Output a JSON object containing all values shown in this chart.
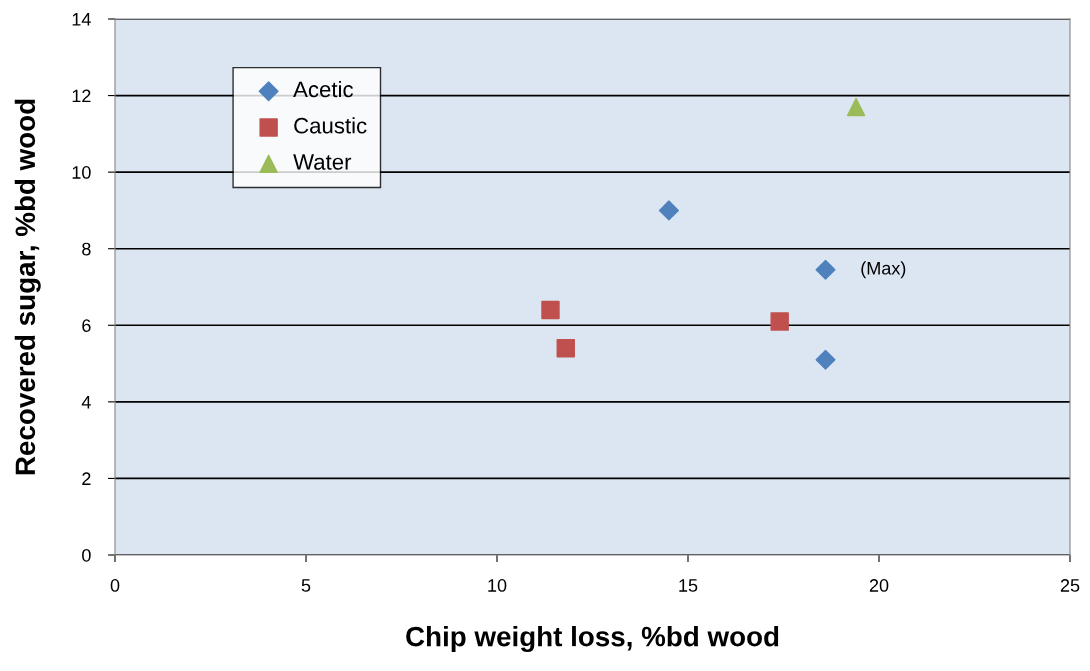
{
  "chart_data": {
    "type": "scatter",
    "xlabel": "Chip weight loss, %bd wood",
    "ylabel": "Recovered sugar, %bd wood",
    "xlim": [
      0,
      25
    ],
    "xticks": [
      0,
      5,
      10,
      15,
      20,
      25
    ],
    "ylim": [
      0,
      14
    ],
    "yticks": [
      0,
      2,
      4,
      6,
      8,
      10,
      12,
      14
    ],
    "grid": "y",
    "legend": "top left",
    "series": [
      {
        "name": "Acetic",
        "color": "#4f81bd",
        "marker": "diamond",
        "x": [
          14.5,
          18.6,
          18.6
        ],
        "values": [
          9.0,
          7.45,
          5.1
        ]
      },
      {
        "name": "Caustic",
        "color": "#c0504d",
        "marker": "square",
        "x": [
          11.4,
          11.8,
          17.4
        ],
        "values": [
          6.4,
          5.4,
          6.1
        ]
      },
      {
        "name": "Water",
        "color": "#9bbb59",
        "marker": "triangle",
        "x": [
          19.4
        ],
        "values": [
          11.7
        ]
      }
    ],
    "annotations": [
      {
        "text": "(Max)",
        "x": 18.6,
        "y": 7.45
      }
    ]
  }
}
